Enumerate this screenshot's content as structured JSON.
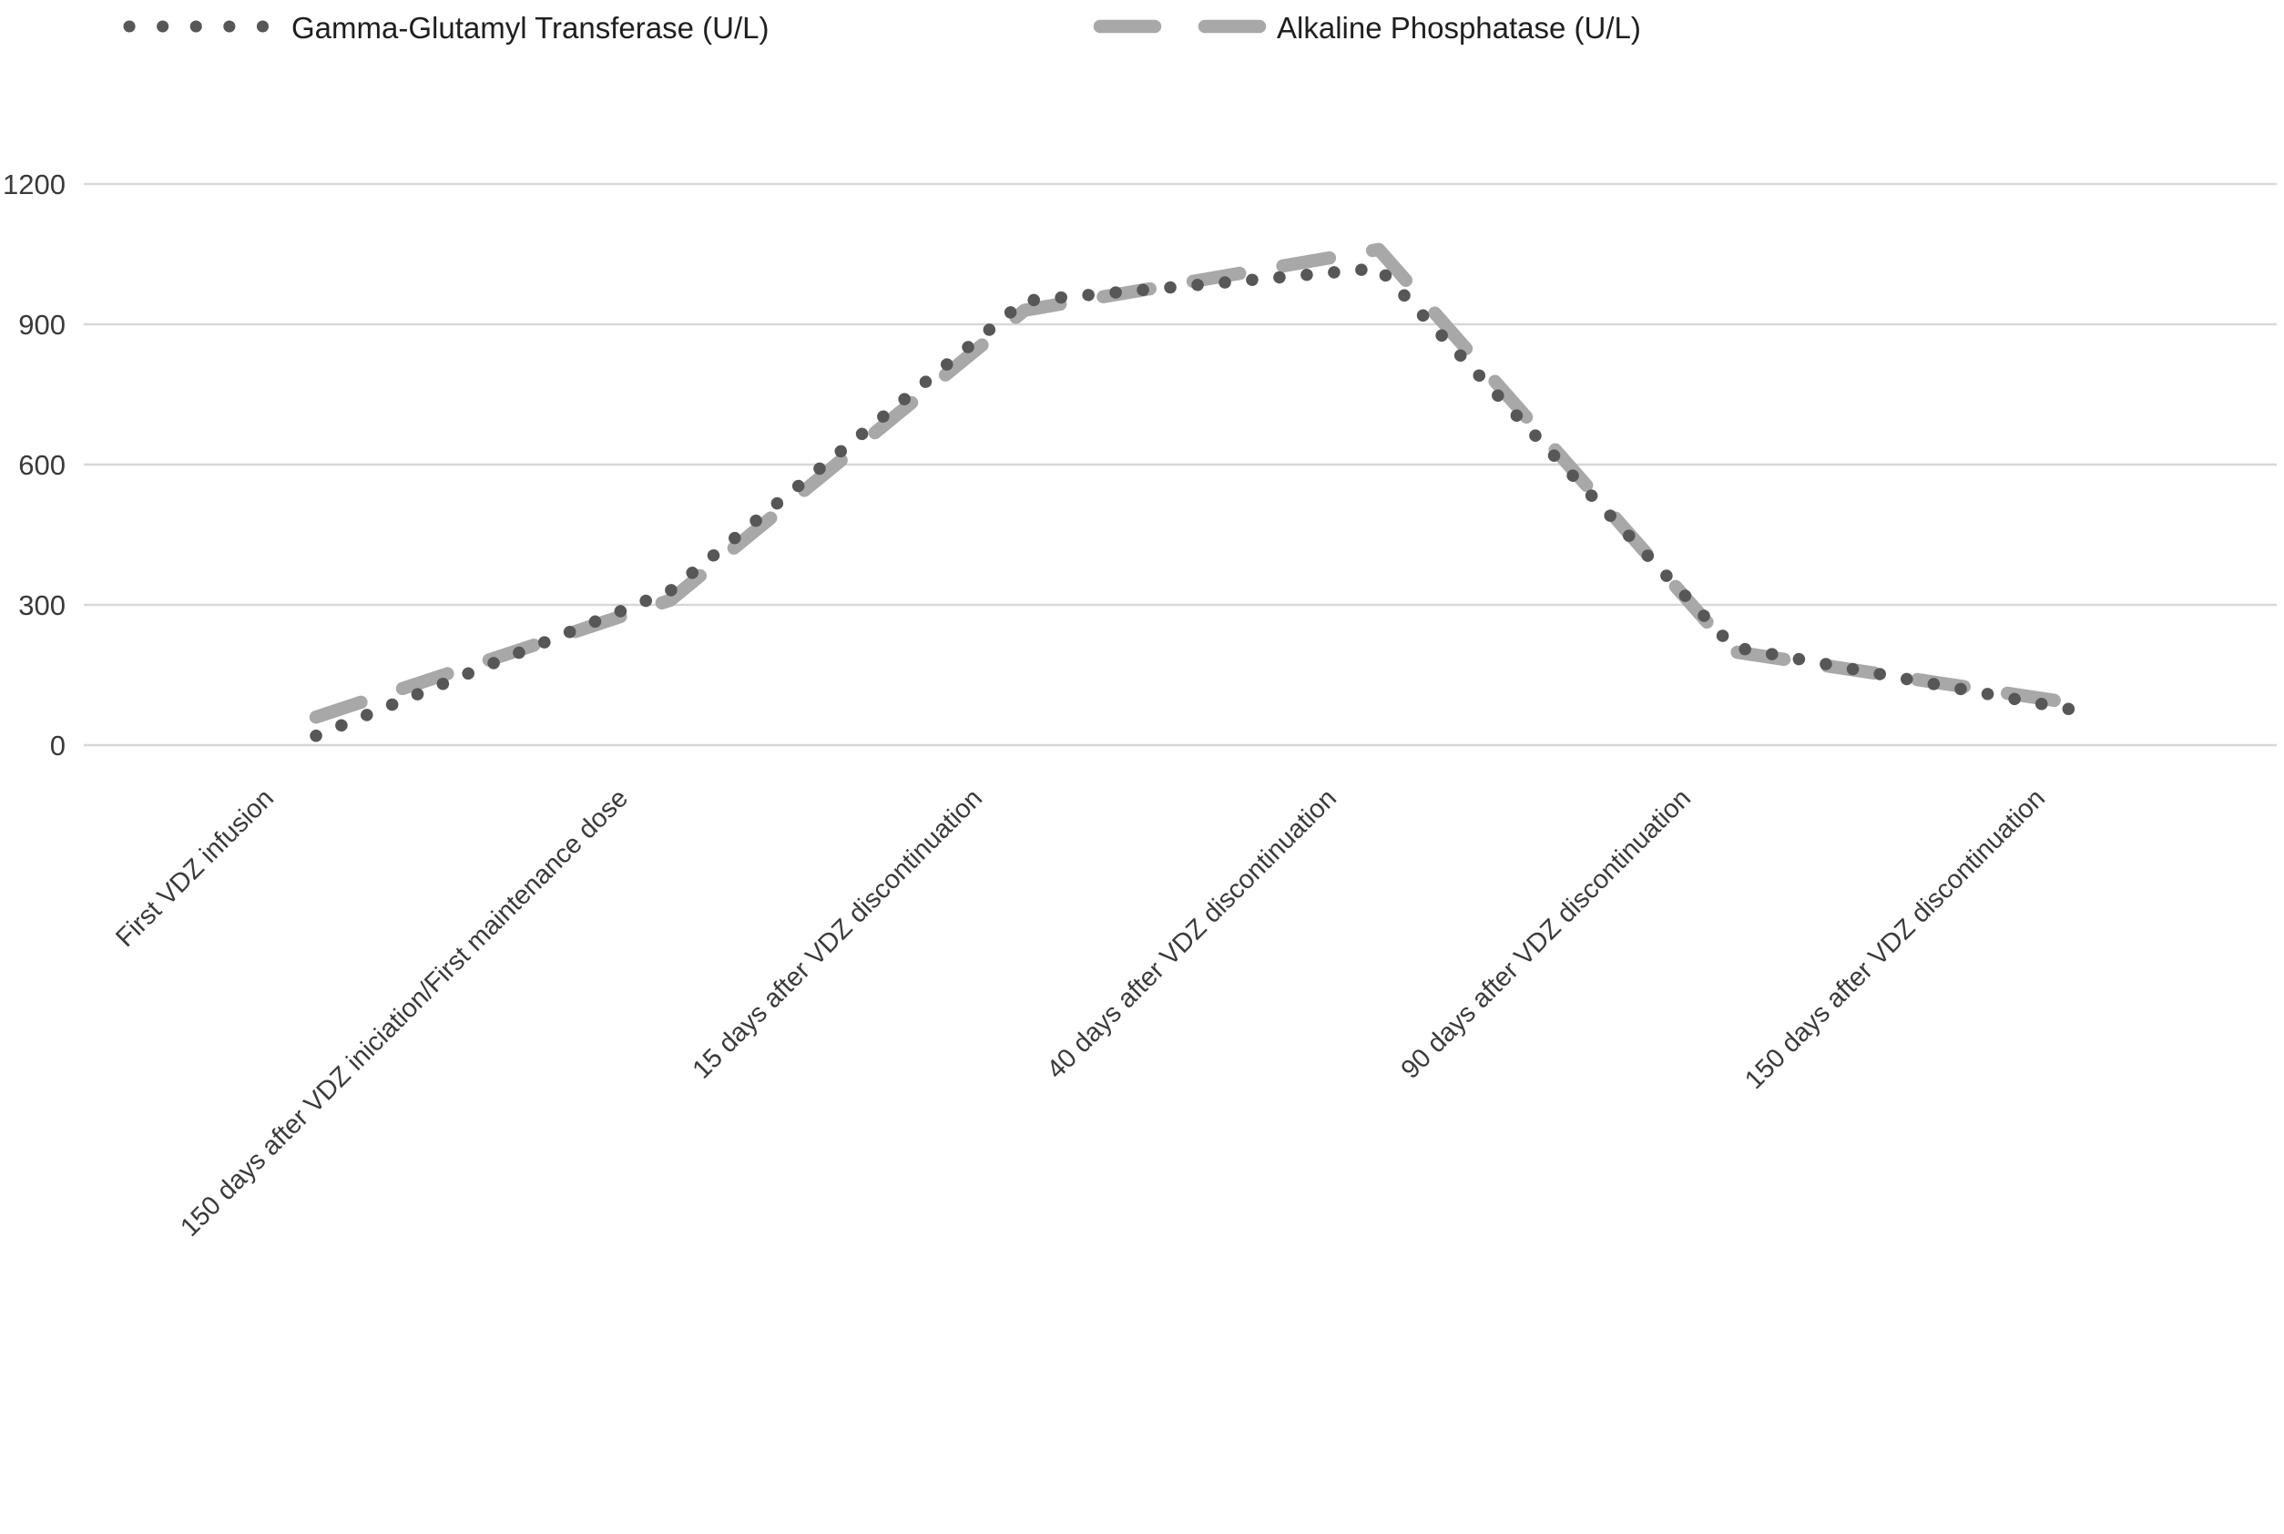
{
  "legend": [
    {
      "label": "Gamma-Glutamyl Transferase (U/L)",
      "style": "dotted",
      "color": "#575757"
    },
    {
      "label": "Alkaline Phosphatase (U/L)",
      "style": "dashed",
      "color": "#a8a8a8"
    }
  ],
  "chart_data": {
    "type": "line",
    "title": "",
    "xlabel": "",
    "ylabel": "",
    "categories": [
      "First VDZ infusion",
      "150 days after VDZ iniciation/First maintenance dose",
      "15 days after VDZ discontinuation",
      "40 days after VDZ discontinuation",
      "90 days after VDZ discontinuation",
      "150 days after VDZ discontinuation"
    ],
    "series": [
      {
        "name": "Gamma-Glutamyl Transferase (U/L)",
        "values": [
          20,
          330,
          950,
          1020,
          210,
          70
        ],
        "color": "#575757",
        "dash": "dotted"
      },
      {
        "name": "Alkaline Phosphatase (U/L)",
        "values": [
          60,
          310,
          930,
          1060,
          200,
          85
        ],
        "color": "#a8a8a8",
        "dash": "dashed"
      }
    ],
    "ylim": [
      0,
      1200
    ],
    "yticks": [
      "0",
      "300",
      "600",
      "900",
      "1200"
    ],
    "grid": "horizontal",
    "gridline_color": "#d8d8d8",
    "legend_position": "top",
    "x_labels_rotation_deg": -45
  }
}
